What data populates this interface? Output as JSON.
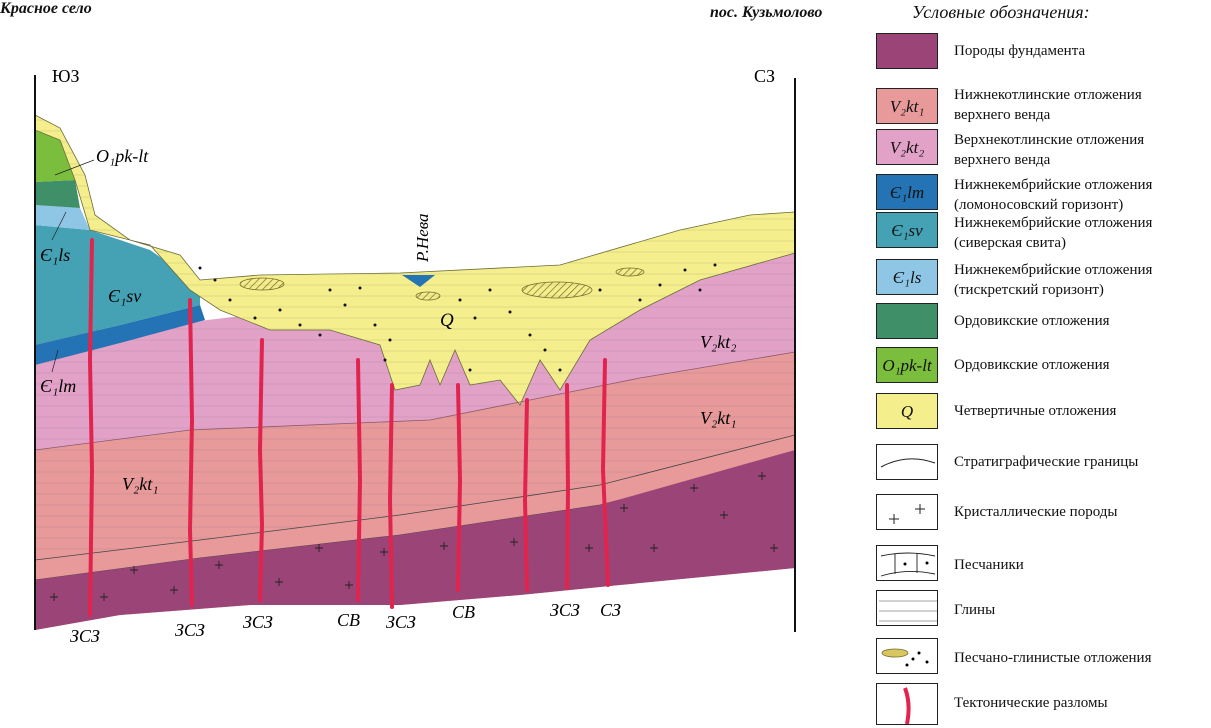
{
  "header": {
    "left_place": "Красное село",
    "right_place": "пос. Кузьмолово",
    "legend_title": "Условные обозначения:"
  },
  "section": {
    "dir_left": "ЮЗ",
    "dir_right": "СЗ",
    "river": "Р.Нева",
    "labels": {
      "o1pklt": "O₁pk-lt",
      "e1ls": "Є₁ls",
      "e1sv": "Є₁sv",
      "e1lm": "Є₁lm",
      "v2kt1_left": "V₂kt₁",
      "v2kt1_right": "V₂kt₁",
      "v2kt2": "V₂kt₂",
      "q": "Q"
    },
    "fault_labels": [
      "ЗСЗ",
      "ЗСЗ",
      "ЗСЗ",
      "СВ",
      "ЗСЗ",
      "СВ",
      "ЗСЗ",
      "СЗ"
    ]
  },
  "legend": {
    "items": [
      {
        "code": "",
        "text1": "Породы фундамента",
        "text2": "",
        "color": "#9b4477"
      },
      {
        "code": "V₂kt₁",
        "text1": "Нижнекотлинские отложения",
        "text2": "верхнего венда",
        "color": "#e8999a"
      },
      {
        "code": "V₂kt₂",
        "text1": "Верхнекотлинские отложения",
        "text2": "верхнего венда",
        "color": "#e2a2c8"
      },
      {
        "code": "Є₁lm",
        "text1": "Нижнекембрийские отложения",
        "text2": "(ломоносовский горизонт)",
        "color": "#2473b5"
      },
      {
        "code": "Є₁sv",
        "text1": "Нижнекембрийские отложения",
        "text2": "(сиверская свита)",
        "color": "#45a1b4"
      },
      {
        "code": "Є₁ls",
        "text1": "Нижнекембрийские отложения",
        "text2": "(тискретский горизонт)",
        "color": "#8fc6e6"
      },
      {
        "code": "",
        "text1": "Ордовикские отложения",
        "text2": "",
        "color": "#3f9068"
      },
      {
        "code": "O₁pk-lt",
        "text1": "Ордовикские отложения",
        "text2": "",
        "color": "#7bbd3c"
      },
      {
        "code": "Q",
        "text1": "Четвертичные отложения",
        "text2": "",
        "color": "#f4ef8c"
      },
      {
        "code": "",
        "text1": "Стратиграфические границы",
        "text2": "",
        "color": "#ffffff"
      },
      {
        "code": "",
        "text1": "Кристаллические породы",
        "text2": "",
        "color": "#ffffff"
      },
      {
        "code": "",
        "text1": "Песчаники",
        "text2": "",
        "color": "#ffffff"
      },
      {
        "code": "",
        "text1": "Глины",
        "text2": "",
        "color": "#ffffff"
      },
      {
        "code": "",
        "text1": "Песчано-глинистые отложения",
        "text2": "",
        "color": "#ffffff"
      },
      {
        "code": "",
        "text1": "Тектонические разломы",
        "text2": "",
        "color": "#ffffff"
      }
    ]
  },
  "colors": {
    "basement": "#9b4477",
    "v2kt1": "#e8999a",
    "v2kt2": "#e2a2c8",
    "lm": "#2473b5",
    "sv": "#45a1b4",
    "ls": "#8fc6e6",
    "ord": "#3f9068",
    "o1pklt": "#7bbd3c",
    "q": "#f4ef8c",
    "fault": "#e0244d"
  }
}
